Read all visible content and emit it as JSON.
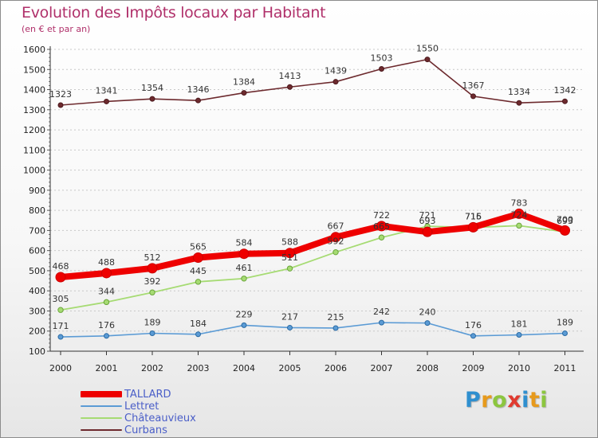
{
  "page": {
    "title": "Evolution des Impôts locaux par Habitant",
    "subtitle": "(en € et par an)"
  },
  "brand": {
    "letters": [
      {
        "ch": "P",
        "color": "#2f8fcf"
      },
      {
        "ch": "r",
        "color": "#e79a1c"
      },
      {
        "ch": "o",
        "color": "#8cc63f"
      },
      {
        "ch": "x",
        "color": "#e03a2f"
      },
      {
        "ch": "i",
        "color": "#2f8fcf"
      },
      {
        "ch": "t",
        "color": "#e79a1c"
      },
      {
        "ch": "i",
        "color": "#8cc63f"
      }
    ]
  },
  "chart_data": {
    "type": "line",
    "title": "Evolution des Impôts locaux par Habitant",
    "subtitle": "(en € et par an)",
    "x": [
      "2000",
      "2001",
      "2002",
      "2003",
      "2004",
      "2005",
      "2006",
      "2007",
      "2008",
      "2009",
      "2010",
      "2011"
    ],
    "ylim": [
      100,
      1600
    ],
    "yticks": [
      "100",
      "200",
      "300",
      "400",
      "500",
      "600",
      "700",
      "800",
      "900",
      "1000",
      "1100",
      "1200",
      "1300",
      "1400",
      "1500",
      "1600"
    ],
    "grid": "horizontal dashed",
    "legend_position": "bottom-left",
    "series": [
      {
        "name": "Curbans",
        "color": "#6d2a2e",
        "values": [
          1323,
          1341,
          1354,
          1346,
          1384,
          1413,
          1439,
          1503,
          1550,
          1367,
          1334,
          1342
        ]
      },
      {
        "name": "Lettret",
        "color": "#5b9bd5",
        "values": [
          171,
          176,
          189,
          184,
          229,
          217,
          215,
          242,
          240,
          176,
          181,
          189
        ]
      },
      {
        "name": "Châteauvieux",
        "color": "#a6db73",
        "values": [
          305,
          344,
          392,
          445,
          461,
          511,
          592,
          665,
          721,
          715,
          724,
          693
        ]
      },
      {
        "name": "TALLARD",
        "color": "#ee0000",
        "values": [
          468,
          488,
          512,
          565,
          584,
          588,
          667,
          722,
          693,
          716,
          783,
          700
        ]
      }
    ],
    "legend_entries": [
      {
        "name": "TALLARD",
        "color": "#ee0000"
      },
      {
        "name": "Lettret",
        "color": "#5b9bd5"
      },
      {
        "name": "Châteauvieux",
        "color": "#a6db73"
      },
      {
        "name": "Curbans",
        "color": "#6d2a2e"
      }
    ]
  }
}
